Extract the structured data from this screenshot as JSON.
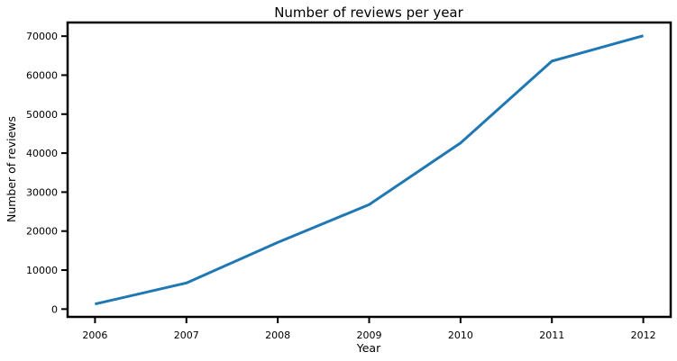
{
  "chart_data": {
    "type": "line",
    "title": "Number of reviews per year",
    "xlabel": "Year",
    "ylabel": "Number of reviews",
    "x": [
      2006,
      2007,
      2008,
      2009,
      2010,
      2011,
      2012
    ],
    "series": [
      {
        "values": [
          1300,
          6700,
          17100,
          26800,
          42600,
          63600,
          70100
        ],
        "color": "#1f77b4"
      }
    ],
    "xlim": [
      2005.7,
      2012.3
    ],
    "ylim": [
      -2000,
      73500
    ],
    "xticks": [
      "2006",
      "2007",
      "2008",
      "2009",
      "2010",
      "2011",
      "2012"
    ],
    "yticks": [
      "0",
      "10000",
      "20000",
      "30000",
      "40000",
      "50000",
      "60000",
      "70000"
    ],
    "grid": false,
    "legend": "none"
  }
}
